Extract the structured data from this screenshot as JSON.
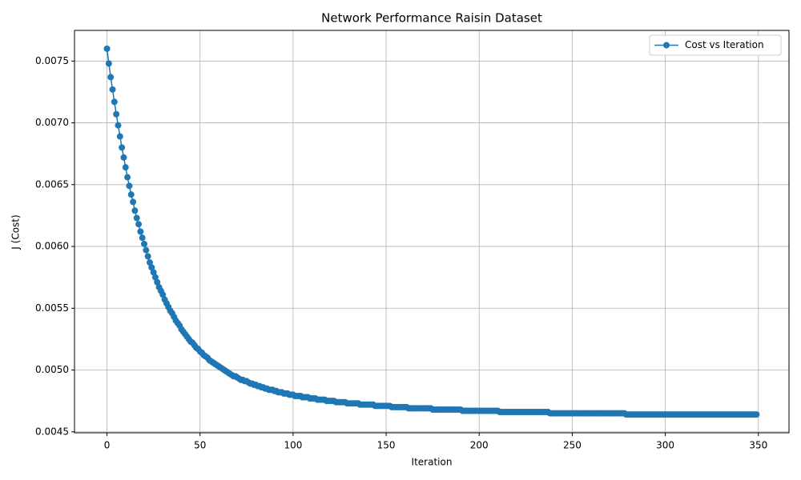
{
  "chart_data": {
    "type": "line",
    "title": "Network Performance Raisin Dataset",
    "x_label": "Iteration",
    "y_label": "J (Cost)",
    "x": [
      0,
      1,
      2,
      3,
      4,
      5,
      6,
      7,
      8,
      9,
      10,
      11,
      12,
      13,
      14,
      15,
      16,
      17,
      18,
      19,
      20,
      21,
      22,
      23,
      24,
      25,
      26,
      27,
      28,
      29,
      30,
      31,
      32,
      33,
      34,
      35,
      36,
      37,
      38,
      39,
      40,
      41,
      42,
      43,
      44,
      45,
      46,
      47,
      48,
      49,
      50,
      51,
      52,
      53,
      54,
      55,
      56,
      57,
      58,
      59,
      60,
      61,
      62,
      63,
      64,
      65,
      66,
      67,
      68,
      69,
      70,
      71,
      72,
      73,
      74,
      75,
      76,
      77,
      78,
      79,
      80,
      81,
      82,
      83,
      84,
      85,
      86,
      87,
      88,
      89,
      90,
      91,
      92,
      93,
      94,
      95,
      96,
      97,
      98,
      99,
      100,
      101,
      102,
      103,
      104,
      105,
      106,
      107,
      108,
      109,
      110,
      111,
      112,
      113,
      114,
      115,
      116,
      117,
      118,
      119,
      120,
      121,
      122,
      123,
      124,
      125,
      126,
      127,
      128,
      129,
      130,
      131,
      132,
      133,
      134,
      135,
      136,
      137,
      138,
      139,
      140,
      141,
      142,
      143,
      144,
      145,
      146,
      147,
      148,
      149,
      150,
      151,
      152,
      153,
      154,
      155,
      156,
      157,
      158,
      159,
      160,
      161,
      162,
      163,
      164,
      165,
      166,
      167,
      168,
      169,
      170,
      171,
      172,
      173,
      174,
      175,
      176,
      177,
      178,
      179,
      180,
      181,
      182,
      183,
      184,
      185,
      186,
      187,
      188,
      189,
      190,
      191,
      192,
      193,
      194,
      195,
      196,
      197,
      198,
      199,
      200,
      201,
      202,
      203,
      204,
      205,
      206,
      207,
      208,
      209,
      210,
      211,
      212,
      213,
      214,
      215,
      216,
      217,
      218,
      219,
      220,
      221,
      222,
      223,
      224,
      225,
      226,
      227,
      228,
      229,
      230,
      231,
      232,
      233,
      234,
      235,
      236,
      237,
      238,
      239,
      240,
      241,
      242,
      243,
      244,
      245,
      246,
      247,
      248,
      249,
      250,
      251,
      252,
      253,
      254,
      255,
      256,
      257,
      258,
      259,
      260,
      261,
      262,
      263,
      264,
      265,
      266,
      267,
      268,
      269,
      270,
      271,
      272,
      273,
      274,
      275,
      276,
      277,
      278,
      279,
      280,
      281,
      282,
      283,
      284,
      285,
      286,
      287,
      288,
      289,
      290,
      291,
      292,
      293,
      294,
      295,
      296,
      297,
      298,
      299,
      300,
      301,
      302,
      303,
      304,
      305,
      306,
      307,
      308,
      309,
      310,
      311,
      312,
      313,
      314,
      315,
      316,
      317,
      318,
      319,
      320,
      321,
      322,
      323,
      324,
      325,
      326,
      327,
      328,
      329,
      330,
      331,
      332,
      333,
      334,
      335,
      336,
      337,
      338,
      339,
      340,
      341,
      342,
      343,
      344,
      345,
      346,
      347,
      348,
      349
    ],
    "series": [
      {
        "name": "Cost vs Iteration",
        "color": "#1f77b4",
        "values": [
          0.0076,
          0.00748,
          0.00737,
          0.00727,
          0.00717,
          0.00707,
          0.00698,
          0.00689,
          0.0068,
          0.00672,
          0.00664,
          0.00656,
          0.00649,
          0.00642,
          0.00636,
          0.00629,
          0.00623,
          0.00618,
          0.00612,
          0.00607,
          0.00602,
          0.00597,
          0.00592,
          0.00587,
          0.00583,
          0.00579,
          0.00575,
          0.00571,
          0.00567,
          0.00564,
          0.00561,
          0.00557,
          0.00554,
          0.00551,
          0.00548,
          0.00546,
          0.00543,
          0.0054,
          0.00538,
          0.00536,
          0.00533,
          0.00531,
          0.00529,
          0.00527,
          0.00525,
          0.00523,
          0.00522,
          0.0052,
          0.00518,
          0.00517,
          0.00515,
          0.00514,
          0.00512,
          0.00511,
          0.0051,
          0.00508,
          0.00507,
          0.00506,
          0.00505,
          0.00504,
          0.00503,
          0.00502,
          0.00501,
          0.005,
          0.00499,
          0.00498,
          0.00497,
          0.00496,
          0.00495,
          0.00495,
          0.00494,
          0.00493,
          0.00492,
          0.00492,
          0.00491,
          0.00491,
          0.0049,
          0.00489,
          0.00489,
          0.00488,
          0.00488,
          0.00487,
          0.00487,
          0.00486,
          0.00486,
          0.00485,
          0.00485,
          0.00484,
          0.00484,
          0.00484,
          0.00483,
          0.00483,
          0.00482,
          0.00482,
          0.00482,
          0.00481,
          0.00481,
          0.00481,
          0.0048,
          0.0048,
          0.0048,
          0.00479,
          0.00479,
          0.00479,
          0.00479,
          0.00478,
          0.00478,
          0.00478,
          0.00478,
          0.00477,
          0.00477,
          0.00477,
          0.00477,
          0.00476,
          0.00476,
          0.00476,
          0.00476,
          0.00476,
          0.00475,
          0.00475,
          0.00475,
          0.00475,
          0.00475,
          0.00474,
          0.00474,
          0.00474,
          0.00474,
          0.00474,
          0.00474,
          0.00473,
          0.00473,
          0.00473,
          0.00473,
          0.00473,
          0.00473,
          0.00473,
          0.00472,
          0.00472,
          0.00472,
          0.00472,
          0.00472,
          0.00472,
          0.00472,
          0.00472,
          0.00471,
          0.00471,
          0.00471,
          0.00471,
          0.00471,
          0.00471,
          0.00471,
          0.00471,
          0.00471,
          0.0047,
          0.0047,
          0.0047,
          0.0047,
          0.0047,
          0.0047,
          0.0047,
          0.0047,
          0.0047,
          0.00469,
          0.00469,
          0.00469,
          0.00469,
          0.00469,
          0.00469,
          0.00469,
          0.00469,
          0.00469,
          0.00469,
          0.00469,
          0.00469,
          0.00469,
          0.00468,
          0.00468,
          0.00468,
          0.00468,
          0.00468,
          0.00468,
          0.00468,
          0.00468,
          0.00468,
          0.00468,
          0.00468,
          0.00468,
          0.00468,
          0.00468,
          0.00468,
          0.00468,
          0.00467,
          0.00467,
          0.00467,
          0.00467,
          0.00467,
          0.00467,
          0.00467,
          0.00467,
          0.00467,
          0.00467,
          0.00467,
          0.00467,
          0.00467,
          0.00467,
          0.00467,
          0.00467,
          0.00467,
          0.00467,
          0.00467,
          0.00467,
          0.00466,
          0.00466,
          0.00466,
          0.00466,
          0.00466,
          0.00466,
          0.00466,
          0.00466,
          0.00466,
          0.00466,
          0.00466,
          0.00466,
          0.00466,
          0.00466,
          0.00466,
          0.00466,
          0.00466,
          0.00466,
          0.00466,
          0.00466,
          0.00466,
          0.00466,
          0.00466,
          0.00466,
          0.00466,
          0.00466,
          0.00466,
          0.00465,
          0.00465,
          0.00465,
          0.00465,
          0.00465,
          0.00465,
          0.00465,
          0.00465,
          0.00465,
          0.00465,
          0.00465,
          0.00465,
          0.00465,
          0.00465,
          0.00465,
          0.00465,
          0.00465,
          0.00465,
          0.00465,
          0.00465,
          0.00465,
          0.00465,
          0.00465,
          0.00465,
          0.00465,
          0.00465,
          0.00465,
          0.00465,
          0.00465,
          0.00465,
          0.00465,
          0.00465,
          0.00465,
          0.00465,
          0.00465,
          0.00465,
          0.00465,
          0.00465,
          0.00465,
          0.00465,
          0.00465,
          0.00464,
          0.00464,
          0.00464,
          0.00464,
          0.00464,
          0.00464,
          0.00464,
          0.00464,
          0.00464,
          0.00464,
          0.00464,
          0.00464,
          0.00464,
          0.00464,
          0.00464,
          0.00464,
          0.00464,
          0.00464,
          0.00464,
          0.00464,
          0.00464,
          0.00464,
          0.00464,
          0.00464,
          0.00464,
          0.00464,
          0.00464,
          0.00464,
          0.00464,
          0.00464,
          0.00464,
          0.00464,
          0.00464,
          0.00464,
          0.00464,
          0.00464,
          0.00464,
          0.00464,
          0.00464,
          0.00464,
          0.00464,
          0.00464,
          0.00464,
          0.00464,
          0.00464,
          0.00464,
          0.00464,
          0.00464,
          0.00464,
          0.00464,
          0.00464,
          0.00464,
          0.00464,
          0.00464,
          0.00464,
          0.00464,
          0.00464,
          0.00464,
          0.00464,
          0.00464,
          0.00464,
          0.00464,
          0.00464,
          0.00464,
          0.00464,
          0.00464,
          0.00464,
          0.00464,
          0.00464,
          0.00464,
          0.00464
        ]
      }
    ],
    "xlim": [
      -17.45,
      366.45
    ],
    "xticks": [
      0,
      50,
      100,
      150,
      200,
      250,
      300,
      350
    ],
    "ylim": [
      0.004492,
      0.007748
    ],
    "yticks": [
      0.0045,
      {
        "value": 0.005,
        "label": "0.0050"
      },
      0.0055,
      {
        "value": 0.006,
        "label": "0.0060"
      },
      0.0065,
      {
        "value": 0.007,
        "label": "0.0070"
      },
      0.0075
    ],
    "grid": true,
    "legend": "upper right",
    "marker": "circle"
  }
}
